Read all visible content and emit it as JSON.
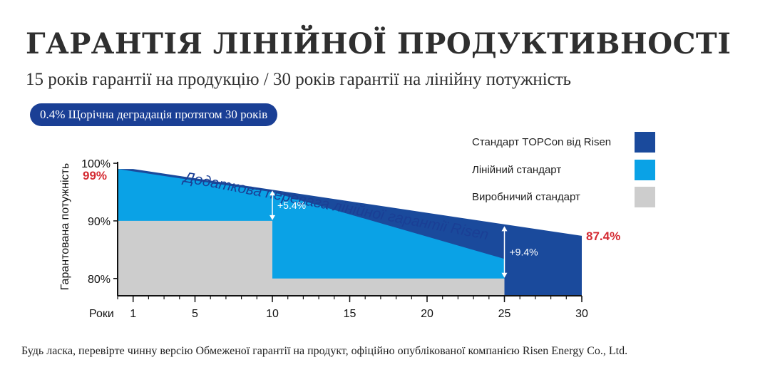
{
  "header": {
    "title": "ГАРАНТІЯ ЛІНІЙНОЇ ПРОДУКТИВНОСТІ",
    "subtitle": "15 років гарантії на продукцію / 30 років гарантії на лінійну потужність",
    "badge": "0.4% Щорічна деградація протягом 30 років"
  },
  "footnote": "Будь ласка, перевірте чинну версію Обмеженої гарантії на продукт, офіційно опублікованої компанією Risen Energy Co., Ltd.",
  "colors": {
    "dark_blue": "#1a4a9c",
    "light_blue": "#0aa2e6",
    "gray": "#cdcdcd",
    "red_label": "#d42a32"
  },
  "chart_data": {
    "type": "area",
    "ylabel": "Гарантована потужність",
    "xlabel": "Роки",
    "x_ticks": [
      1,
      5,
      10,
      15,
      20,
      25,
      30
    ],
    "y_ticks": [
      "80%",
      "90%",
      "100%"
    ],
    "xlim": [
      0,
      30
    ],
    "ylim": [
      77,
      101
    ],
    "series": [
      {
        "name": "Стандарт TOPCon від Risen",
        "color": "#1a4a9c",
        "points": [
          [
            0,
            99
          ],
          [
            1,
            99
          ],
          [
            30,
            87.4
          ]
        ]
      },
      {
        "name": "Лінійний стандарт",
        "color": "#0aa2e6",
        "points": [
          [
            0,
            99
          ],
          [
            1,
            98.6
          ],
          [
            10,
            95.0
          ],
          [
            25,
            83.4
          ]
        ]
      },
      {
        "name": "Виробничий стандарт",
        "color": "#cdcdcd",
        "steps": [
          [
            0,
            10,
            90
          ],
          [
            10,
            25,
            80
          ]
        ]
      }
    ],
    "annotations": {
      "banner": "Додаткова перевага лінійної гарантії Risen",
      "gap1": "+5.4%",
      "gap2": "+9.4%",
      "start_value": "99%",
      "end_value": "87.4%"
    }
  }
}
